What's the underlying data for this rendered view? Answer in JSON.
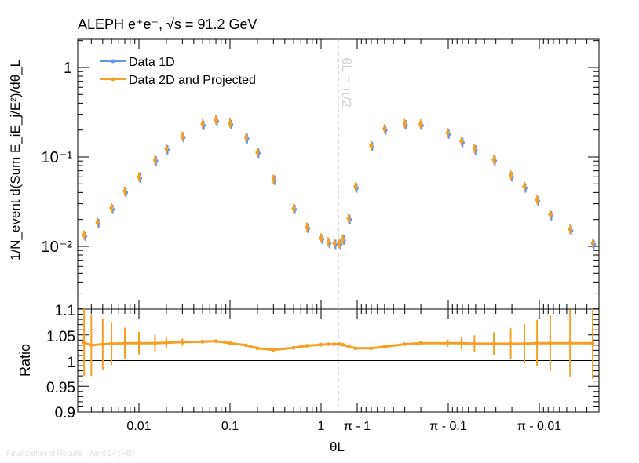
{
  "chart_data": {
    "type": "scatter",
    "title": "ALEPH e⁺e⁻, √s = 91.2 GeV",
    "xlabel": "θL",
    "ylabel": "1/N_event d(Sum E_iE_j/E²)/dθ_L",
    "ratio_ylabel": "Ratio",
    "x_scale": "log-mirrored about π/2",
    "x_tick_labels": [
      "0.01",
      "0.1",
      "1",
      "π - 1",
      "π - 0.1",
      "π - 0.01"
    ],
    "y_tick_labels": [
      "1",
      "10⁻¹",
      "10⁻²"
    ],
    "ratio_tick_labels": [
      "1.1",
      "1.05",
      "1",
      "0.95",
      "0.9"
    ],
    "ylim": [
      0.002,
      2
    ],
    "ratio_ylim": [
      0.9,
      1.1
    ],
    "annotation": "θL = π/2",
    "legend": {
      "placement": "top-left",
      "entries": [
        "Data 1D",
        "Data 2D and Projected"
      ]
    },
    "series": [
      {
        "name": "Data 1D",
        "color": "#6495ed",
        "x": [
          0.0025,
          0.0035,
          0.005,
          0.007,
          0.01,
          0.015,
          0.02,
          0.03,
          0.05,
          0.07,
          0.1,
          0.15,
          0.2,
          0.3,
          0.5,
          0.7,
          1.0,
          1.2,
          1.4,
          1.5708,
          1.7,
          1.9,
          2.1,
          2.44,
          2.64,
          2.84,
          2.94,
          3.04,
          3.07,
          3.09,
          3.11,
          3.121,
          3.127,
          3.131,
          3.134,
          3.137,
          3.139
        ],
        "y": [
          0.013,
          0.018,
          0.026,
          0.04,
          0.058,
          0.09,
          0.12,
          0.165,
          0.225,
          0.25,
          0.23,
          0.16,
          0.11,
          0.055,
          0.026,
          0.016,
          0.012,
          0.0108,
          0.0105,
          0.0105,
          0.0118,
          0.02,
          0.045,
          0.13,
          0.2,
          0.228,
          0.225,
          0.18,
          0.145,
          0.12,
          0.09,
          0.06,
          0.045,
          0.032,
          0.022,
          0.015,
          0.0105
        ]
      },
      {
        "name": "Data 2D and Projected",
        "color": "#f5a024",
        "x": [
          0.0025,
          0.0035,
          0.005,
          0.007,
          0.01,
          0.015,
          0.02,
          0.03,
          0.05,
          0.07,
          0.1,
          0.15,
          0.2,
          0.3,
          0.5,
          0.7,
          1.0,
          1.2,
          1.4,
          1.5708,
          1.7,
          1.9,
          2.1,
          2.44,
          2.64,
          2.84,
          2.94,
          3.04,
          3.07,
          3.09,
          3.11,
          3.121,
          3.127,
          3.131,
          3.134,
          3.137,
          3.139
        ],
        "y": [
          0.0134,
          0.0186,
          0.0269,
          0.0414,
          0.06,
          0.0932,
          0.1242,
          0.1708,
          0.2336,
          0.26,
          0.2386,
          0.1653,
          0.1127,
          0.0563,
          0.0266,
          0.0164,
          0.0124,
          0.0112,
          0.0108,
          0.0108,
          0.0121,
          0.0206,
          0.0463,
          0.1343,
          0.2066,
          0.2354,
          0.2326,
          0.1863,
          0.1502,
          0.1244,
          0.0934,
          0.0624,
          0.0468,
          0.0334,
          0.0229,
          0.0156,
          0.0109
        ]
      }
    ],
    "ratio_series": {
      "name": "Data 2D and Projected / Data 1D",
      "color": "#f5a024",
      "x": [
        0.0025,
        0.003,
        0.004,
        0.005,
        0.007,
        0.01,
        0.015,
        0.02,
        0.03,
        0.05,
        0.07,
        0.1,
        0.15,
        0.2,
        0.3,
        0.5,
        0.7,
        1.0,
        1.2,
        1.4,
        1.5708,
        1.7,
        1.9,
        2.1,
        2.44,
        2.64,
        2.84,
        2.94,
        3.04,
        3.07,
        3.09,
        3.11,
        3.121,
        3.127,
        3.131,
        3.134,
        3.137,
        3.139
      ],
      "y": [
        1.035,
        1.03,
        1.032,
        1.033,
        1.034,
        1.034,
        1.034,
        1.035,
        1.036,
        1.037,
        1.038,
        1.034,
        1.03,
        1.024,
        1.021,
        1.025,
        1.029,
        1.031,
        1.032,
        1.032,
        1.032,
        1.031,
        1.028,
        1.024,
        1.024,
        1.027,
        1.032,
        1.034,
        1.034,
        1.034,
        1.033,
        1.033,
        1.033,
        1.033,
        1.034,
        1.034,
        1.034,
        1.034
      ],
      "err": [
        0.065,
        0.06,
        0.05,
        0.042,
        0.03,
        0.022,
        0.016,
        0.012,
        0.007,
        0.004,
        0.003,
        0.002,
        0.002,
        0.002,
        0.002,
        0.002,
        0.002,
        0.002,
        0.002,
        0.002,
        0.002,
        0.002,
        0.002,
        0.002,
        0.002,
        0.002,
        0.002,
        0.003,
        0.007,
        0.012,
        0.016,
        0.022,
        0.03,
        0.038,
        0.045,
        0.055,
        0.065,
        0.07
      ]
    }
  },
  "footer": "Finalization of Results - April 24 (HB)"
}
